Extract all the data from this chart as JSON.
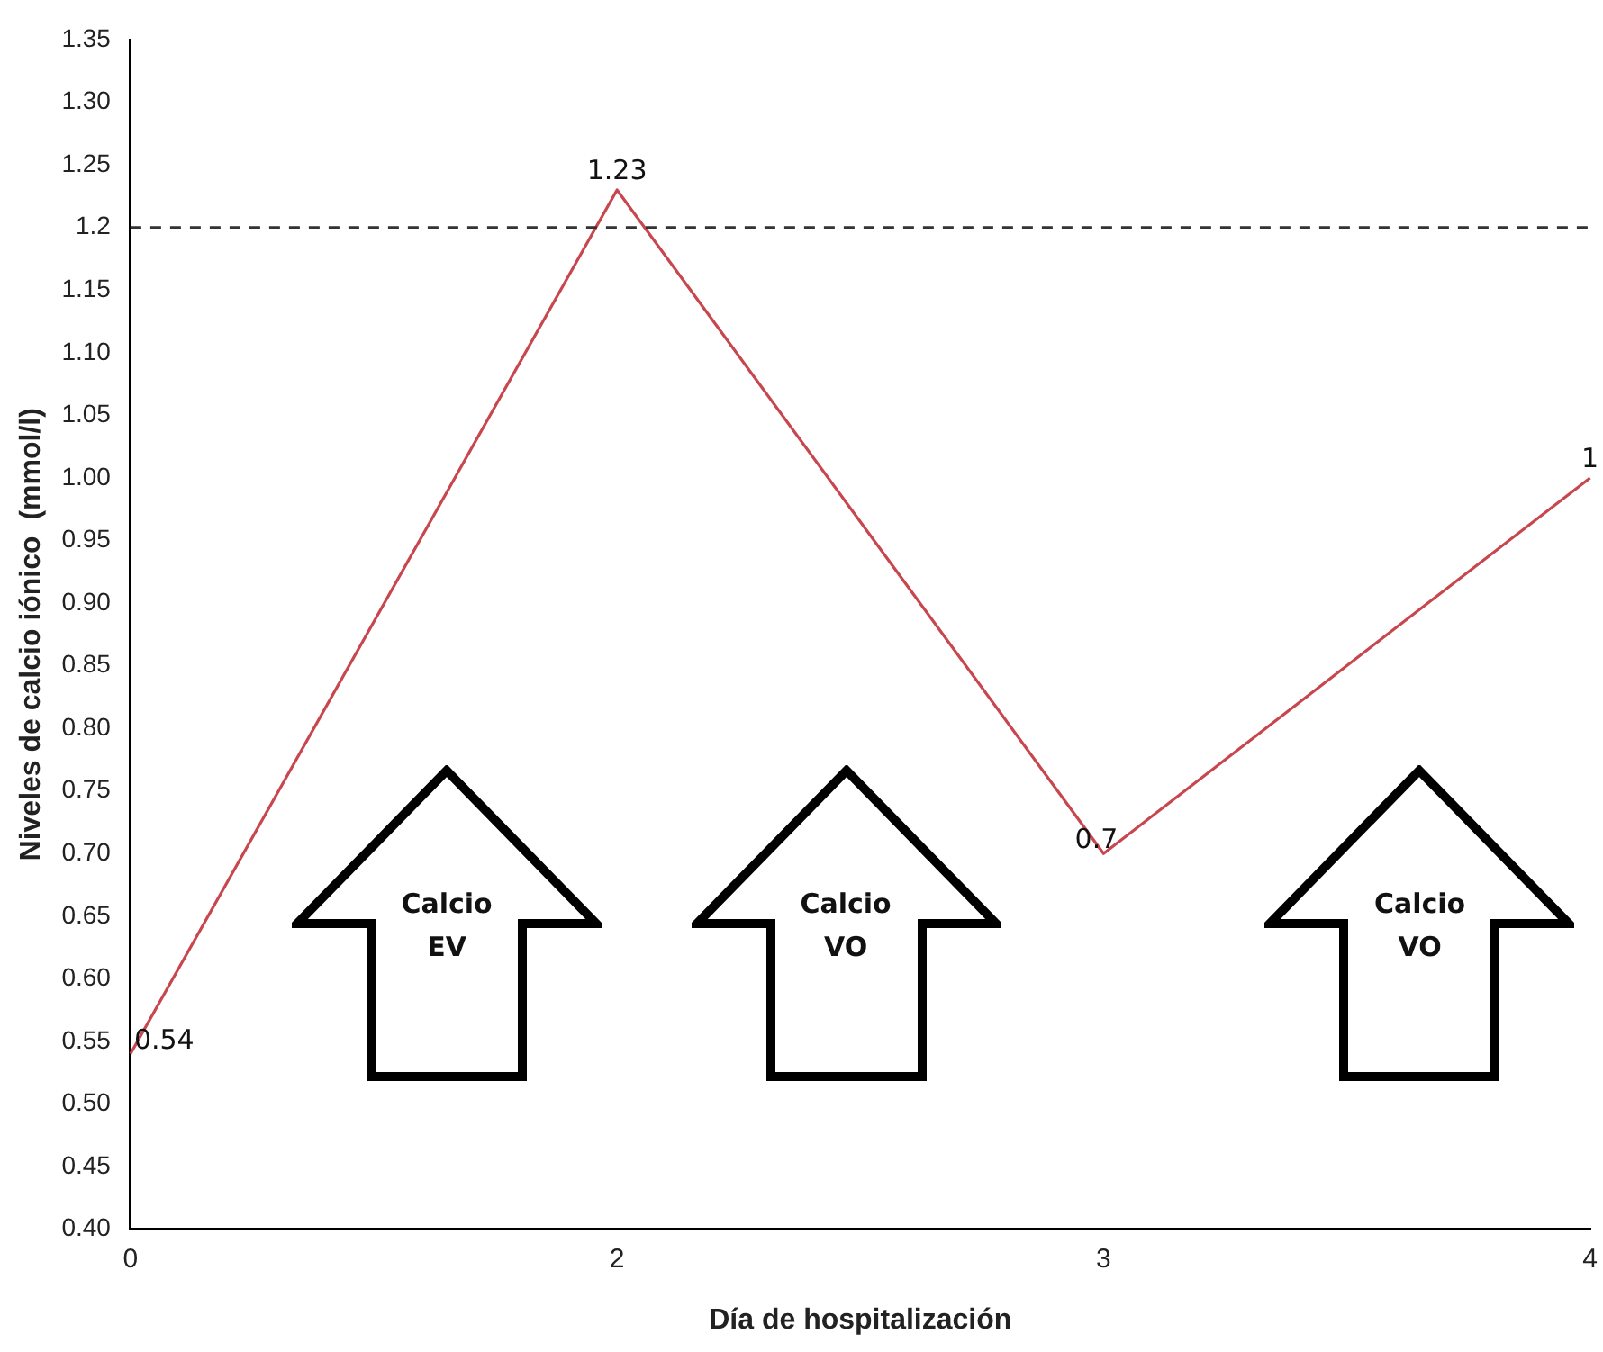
{
  "chart_data": {
    "type": "line",
    "xlabel": "Día de hospitalización",
    "ylabel": "Niveles de calcio iónico  (mmol/l)",
    "categories": [
      "0",
      "2",
      "3",
      "4"
    ],
    "series": [
      {
        "color": "#c8474f",
        "values": [
          0.54,
          1.23,
          0.7,
          1
        ]
      }
    ],
    "value_labels": [
      "0.54",
      "1.23",
      "0.7",
      "1"
    ],
    "ylim": [
      0.4,
      1.35
    ],
    "yticks": [
      {
        "value": 0.4,
        "label": "0.40"
      },
      {
        "value": 0.45,
        "label": "0.45"
      },
      {
        "value": 0.5,
        "label": "0.50"
      },
      {
        "value": 0.55,
        "label": "0.55"
      },
      {
        "value": 0.6,
        "label": "0.60"
      },
      {
        "value": 0.65,
        "label": "0.65"
      },
      {
        "value": 0.7,
        "label": "0.70"
      },
      {
        "value": 0.75,
        "label": "0.75"
      },
      {
        "value": 0.8,
        "label": "0.80"
      },
      {
        "value": 0.85,
        "label": "0.85"
      },
      {
        "value": 0.9,
        "label": "0.90"
      },
      {
        "value": 0.95,
        "label": "0.95"
      },
      {
        "value": 1,
        "label": "1.00"
      },
      {
        "value": 1.05,
        "label": "1.05"
      },
      {
        "value": 1.1,
        "label": "1.10"
      },
      {
        "value": 1.15,
        "label": "1.15"
      },
      {
        "value": 1.2,
        "label": "1.2"
      },
      {
        "value": 1.25,
        "label": "1.25"
      },
      {
        "value": 1.3,
        "label": "1.30"
      },
      {
        "value": 1.35,
        "label": "1.35"
      }
    ],
    "ref_lines": [
      {
        "axis": "y",
        "value": 1.2,
        "color": "#333333",
        "line_style": "dashed"
      }
    ],
    "annotations": [
      "Calcio EV",
      "Calcio VO",
      "Calcio VO"
    ],
    "grid": false,
    "legend": false,
    "marker": "none",
    "line_style": "solid"
  }
}
